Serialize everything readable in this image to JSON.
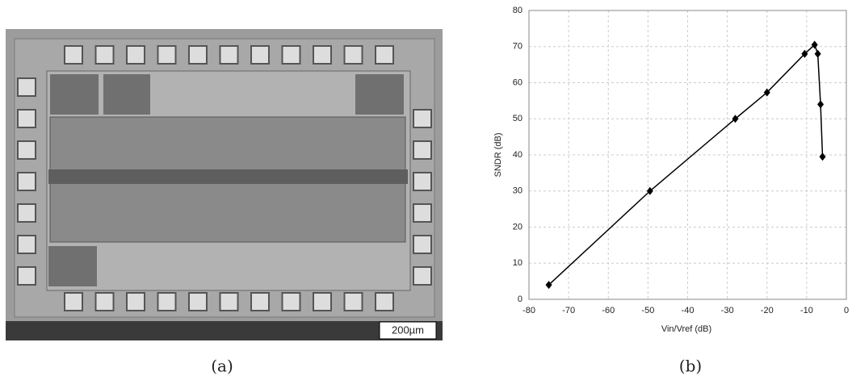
{
  "figure": {
    "scale_bar": "200µm",
    "panel_a": "(a)",
    "panel_b": "(b)"
  },
  "chart_data": {
    "type": "line",
    "x_label": "Vin/Vref (dB)",
    "y_label": "SNDR (dB)",
    "x": [
      -75,
      -49.5,
      -28,
      -20,
      -10.5,
      -8,
      -7.2,
      -6.5,
      -6
    ],
    "series": [
      {
        "color": "#000000",
        "values": [
          4,
          30,
          50,
          57.3,
          68,
          70.5,
          68,
          54,
          39.5
        ]
      }
    ],
    "xlim": [
      -80,
      0
    ],
    "xticks": [
      -80,
      -70,
      -60,
      -50,
      -40,
      -30,
      -20,
      -10,
      0
    ],
    "ylim": [
      0,
      80
    ],
    "yticks": [
      0,
      10,
      20,
      30,
      40,
      50,
      60,
      70,
      80
    ],
    "grid": true
  }
}
